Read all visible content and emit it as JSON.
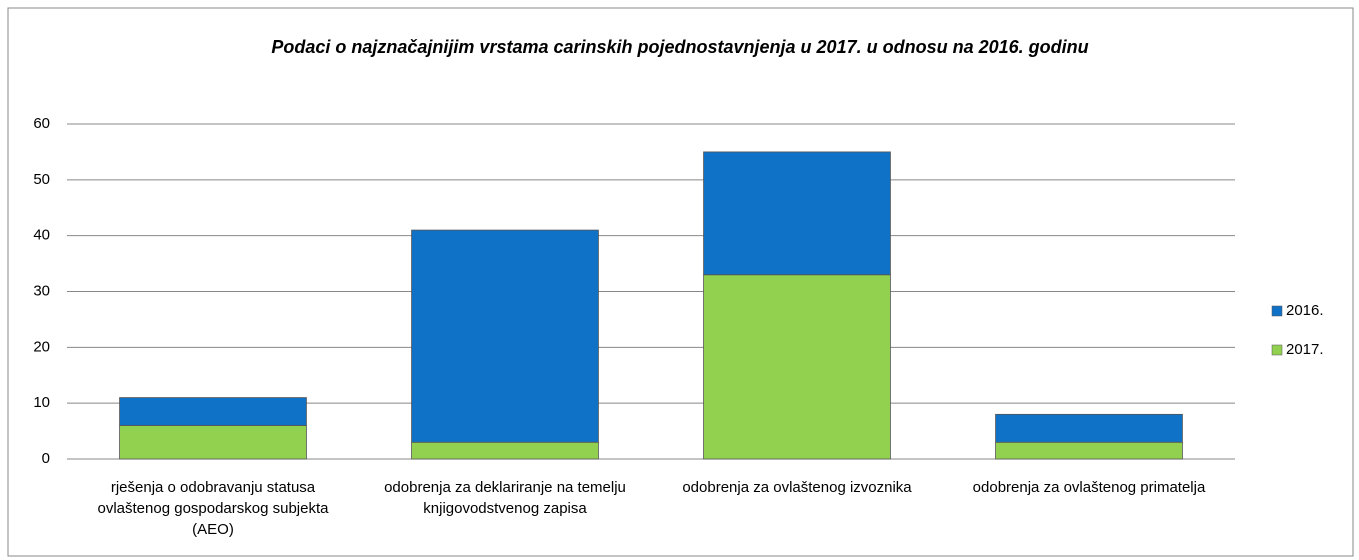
{
  "chart_data": {
    "type": "bar",
    "stacked": true,
    "title": "Podaci o najznačajnijim vrstama carinskih pojednostavnjenja u 2017. u odnosu na 2016. godinu",
    "categories": [
      "rješenja o odobravanju statusa ovlaštenog gospodarskog subjekta (AEO)",
      "odobrenja za deklariranje na temelju knjigovodstvenog zapisa",
      "odobrenja za ovlaštenog izvoznika",
      "odobrenja za ovlaštenog primatelja"
    ],
    "series": [
      {
        "name": "2016.",
        "color": "#0f72c6",
        "values": [
          5,
          38,
          22,
          5
        ]
      },
      {
        "name": "2017.",
        "color": "#92d050",
        "values": [
          6,
          3,
          33,
          3
        ]
      }
    ],
    "ylim": [
      0,
      60
    ],
    "yticks": [
      0,
      10,
      20,
      30,
      40,
      50,
      60
    ],
    "grid": true,
    "legend": "right"
  }
}
